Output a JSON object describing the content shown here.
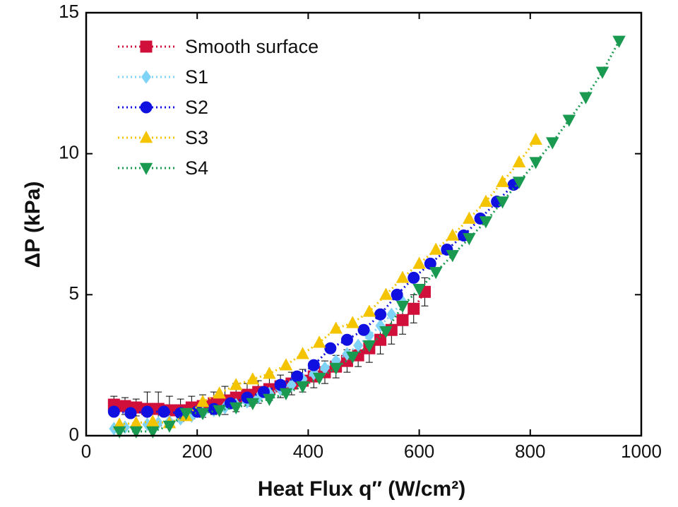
{
  "chart_data": {
    "type": "line",
    "xlabel": "Heat Flux q″ (W/cm²)",
    "ylabel": "ΔP (kPa)",
    "xlim": [
      0,
      1000
    ],
    "ylim": [
      0,
      15
    ],
    "xticks": [
      0,
      200,
      400,
      600,
      800,
      1000
    ],
    "yticks": [
      0,
      5,
      10,
      15
    ],
    "grid": false,
    "legend": "upper left",
    "series": [
      {
        "name": "Smooth surface",
        "color": "#d0103a",
        "marker": "square",
        "x": [
          50,
          70,
          90,
          110,
          130,
          150,
          170,
          190,
          210,
          230,
          250,
          270,
          290,
          310,
          330,
          350,
          370,
          390,
          410,
          430,
          450,
          470,
          490,
          510,
          530,
          550,
          570,
          590,
          610
        ],
        "values": [
          1.1,
          1.05,
          1.0,
          0.95,
          0.95,
          0.9,
          0.9,
          1.0,
          1.05,
          1.15,
          1.25,
          1.35,
          1.45,
          1.55,
          1.65,
          1.75,
          1.85,
          1.95,
          2.1,
          2.25,
          2.45,
          2.65,
          2.85,
          3.1,
          3.4,
          3.75,
          4.1,
          4.5,
          5.1
        ],
        "errors": [
          0.3,
          0.3,
          0.3,
          0.6,
          0.6,
          0.5,
          0.4,
          0.4,
          0.4,
          0.4,
          0.5,
          0.5,
          0.4,
          0.4,
          0.4,
          0.4,
          0.4,
          0.4,
          0.4,
          0.4,
          0.4,
          0.4,
          0.4,
          0.5,
          0.5,
          0.5,
          0.5,
          0.5,
          0.5
        ]
      },
      {
        "name": "S1",
        "color": "#7fd3f7",
        "marker": "diamond",
        "x": [
          50,
          70,
          90,
          110,
          130,
          150,
          170,
          190,
          210,
          230,
          250,
          270,
          290,
          310,
          330,
          350,
          370,
          390,
          410,
          430,
          450,
          470,
          490,
          510,
          530,
          550,
          570
        ],
        "values": [
          0.25,
          0.3,
          0.35,
          0.4,
          0.45,
          0.5,
          0.6,
          0.7,
          0.8,
          0.9,
          1.0,
          1.1,
          1.2,
          1.35,
          1.5,
          1.65,
          1.8,
          2.0,
          2.2,
          2.4,
          2.65,
          2.9,
          3.2,
          3.55,
          3.9,
          4.3,
          4.75
        ]
      },
      {
        "name": "S2",
        "color": "#1010e0",
        "marker": "circle",
        "x": [
          50,
          80,
          110,
          140,
          170,
          200,
          230,
          260,
          290,
          320,
          350,
          380,
          410,
          440,
          470,
          500,
          530,
          560,
          590,
          620,
          650,
          680,
          710,
          740,
          770
        ],
        "values": [
          0.85,
          0.8,
          0.85,
          0.85,
          0.8,
          0.85,
          0.95,
          1.15,
          1.35,
          1.55,
          1.8,
          2.1,
          2.5,
          3.1,
          3.4,
          3.75,
          4.3,
          5.0,
          5.6,
          6.1,
          6.6,
          7.1,
          7.7,
          8.3,
          8.9
        ]
      },
      {
        "name": "S3",
        "color": "#f5c400",
        "marker": "triangle-up",
        "x": [
          60,
          90,
          120,
          150,
          180,
          210,
          240,
          270,
          300,
          330,
          360,
          390,
          420,
          450,
          480,
          510,
          540,
          570,
          600,
          630,
          660,
          690,
          720,
          750,
          780,
          810
        ],
        "values": [
          0.4,
          0.45,
          0.5,
          0.45,
          0.7,
          1.2,
          1.5,
          1.8,
          2.0,
          2.2,
          2.5,
          2.9,
          3.3,
          3.8,
          4.0,
          4.4,
          5.0,
          5.6,
          6.1,
          6.6,
          7.1,
          7.7,
          8.3,
          9.0,
          9.7,
          10.5
        ]
      },
      {
        "name": "S4",
        "color": "#1a9a50",
        "marker": "triangle-down",
        "x": [
          60,
          90,
          120,
          150,
          180,
          210,
          240,
          270,
          300,
          330,
          360,
          390,
          420,
          450,
          480,
          510,
          540,
          570,
          600,
          630,
          660,
          690,
          720,
          750,
          780,
          810,
          840,
          870,
          900,
          930,
          960
        ],
        "values": [
          0.15,
          0.15,
          0.15,
          0.35,
          0.8,
          0.8,
          0.9,
          1.0,
          1.15,
          1.3,
          1.5,
          1.75,
          2.05,
          2.4,
          2.8,
          3.2,
          3.7,
          4.6,
          5.2,
          5.8,
          6.4,
          7.0,
          7.6,
          8.3,
          9.0,
          9.7,
          10.4,
          11.2,
          12.0,
          12.9,
          14.0
        ]
      }
    ]
  }
}
